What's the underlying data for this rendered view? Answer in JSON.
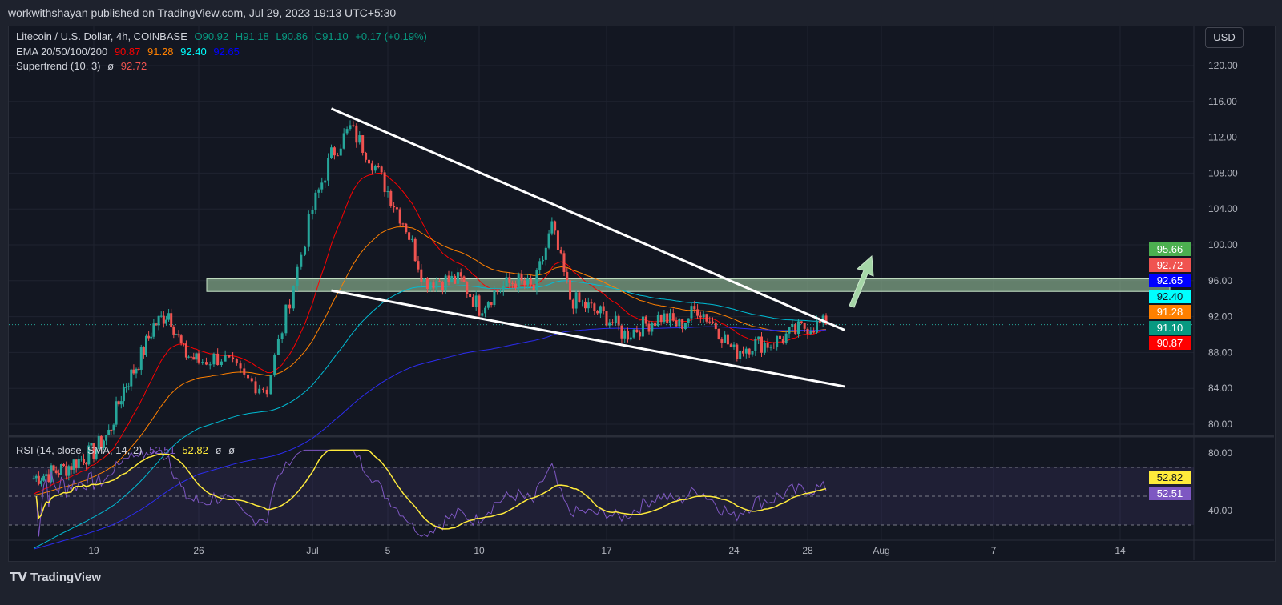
{
  "header": {
    "published": "workwithshayan published on TradingView.com, Jul 29, 2023 19:13 UTC+5:30"
  },
  "legend": {
    "symbol": "Litecoin / U.S. Dollar, 4h, COINBASE",
    "open": "O90.92",
    "high": "H91.18",
    "low": "L90.86",
    "close": "C91.10",
    "change": "+0.17 (+0.19%)",
    "ema_label": "EMA 20/50/100/200",
    "ema20": "90.87",
    "ema50": "91.28",
    "ema100": "92.40",
    "ema200": "92.65",
    "st_label": "Supertrend (10, 3)",
    "st_null": "ø",
    "st_value": "92.72",
    "rsi_label": "RSI (14, close, SMA, 14, 2)",
    "rsi_value": "52.51",
    "rsi_sma": "52.82",
    "rsi_null1": "ø",
    "rsi_null2": "ø"
  },
  "currency_button": "USD",
  "price_tags": [
    {
      "v": "95.66",
      "bg": "#4caf50",
      "fg": "#fff"
    },
    {
      "v": "92.72",
      "bg": "#f05350",
      "fg": "#fff"
    },
    {
      "v": "92.65",
      "bg": "#0000ff",
      "fg": "#fff"
    },
    {
      "v": "92.40",
      "bg": "#00ffff",
      "fg": "#131722"
    },
    {
      "v": "91.28",
      "bg": "#ff8000",
      "fg": "#fff"
    },
    {
      "v": "91.10",
      "bg": "#089981",
      "fg": "#fff"
    },
    {
      "v": "90.87",
      "bg": "#ff0000",
      "fg": "#fff"
    }
  ],
  "rsi_tags": [
    {
      "v": "52.82",
      "bg": "#ffeb3b",
      "fg": "#131722"
    },
    {
      "v": "52.51",
      "bg": "#7e57c2",
      "fg": "#fff"
    }
  ],
  "footer": {
    "brand": "TradingView"
  },
  "colors": {
    "up": "#26a69a",
    "down": "#ef5350",
    "ema20": "#ff0000",
    "ema50": "#ff8000",
    "ema100": "#00bcd4",
    "ema200": "#2c2cf0",
    "rsi": "#7e57c2",
    "rsi_sma": "#ffeb3b",
    "zone": "#a5d6a7"
  },
  "chart_data": {
    "type": "candlestick",
    "price_axis": {
      "ticks": [
        "80.00",
        "84.00",
        "88.00",
        "92.00",
        "96.00",
        "100.00",
        "104.00",
        "108.00",
        "112.00",
        "116.00",
        "120.00"
      ],
      "range": [
        78.8,
        123
      ]
    },
    "rsi_axis": {
      "ticks": [
        "40.00",
        "80.00"
      ],
      "bands": [
        30,
        70
      ]
    },
    "time_ticks": [
      "19",
      "26",
      "Jul",
      "5",
      "10",
      "17",
      "24",
      "28",
      "Aug",
      "7",
      "14"
    ],
    "dates": [
      "Jun 15",
      "Jun 16",
      "Jun 17",
      "Jun 18",
      "Jun 19",
      "Jun 20",
      "Jun 21",
      "Jun 22",
      "Jun 23",
      "Jun 24",
      "Jun 25",
      "Jun 26",
      "Jun 27",
      "Jun 28",
      "Jun 29",
      "Jun 30",
      "Jul 1",
      "Jul 2",
      "Jul 3",
      "Jul 4",
      "Jul 5",
      "Jul 6",
      "Jul 7",
      "Jul 8",
      "Jul 9",
      "Jul 10",
      "Jul 11",
      "Jul 12",
      "Jul 13",
      "Jul 14",
      "Jul 15",
      "Jul 16",
      "Jul 17",
      "Jul 18",
      "Jul 19",
      "Jul 20",
      "Jul 21",
      "Jul 22",
      "Jul 23",
      "Jul 24",
      "Jul 25",
      "Jul 26",
      "Jul 27",
      "Jul 28",
      "Jul 29"
    ],
    "close": [
      74,
      74.5,
      75,
      76,
      77,
      79,
      84,
      87,
      91,
      92.5,
      88,
      87,
      87.5,
      85,
      84,
      94,
      104,
      110,
      113,
      110,
      106,
      102,
      96,
      96,
      96,
      93,
      95,
      96,
      95,
      102,
      94,
      93,
      92,
      90,
      91,
      92,
      91,
      93,
      91,
      88,
      89,
      89,
      90,
      91,
      91.1
    ],
    "support_zone": [
      94.8,
      96.2
    ],
    "upper_trendline": [
      [
        "Jul 2",
        115.2
      ],
      [
        "Jul 30",
        90.5
      ]
    ],
    "lower_trendline": [
      [
        "Jul 2",
        94.9
      ],
      [
        "Jul 30",
        84.2
      ]
    ]
  }
}
